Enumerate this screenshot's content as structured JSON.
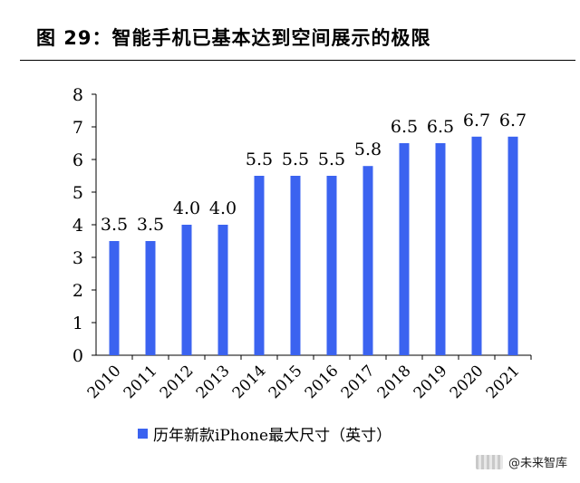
{
  "figure": {
    "title": "图 29：智能手机已基本达到空间展示的极限",
    "watermark": "@未来智库"
  },
  "chart_data": {
    "type": "bar",
    "categories": [
      "2010",
      "2011",
      "2012",
      "2013",
      "2014",
      "2015",
      "2016",
      "2017",
      "2018",
      "2019",
      "2020",
      "2021"
    ],
    "series": [
      {
        "name": "历年新款iPhone最大尺寸（英寸）",
        "values": [
          3.5,
          3.5,
          4.0,
          4.0,
          5.5,
          5.5,
          5.5,
          5.8,
          6.5,
          6.5,
          6.7,
          6.7
        ],
        "labels": [
          "3.5",
          "3.5",
          "4.0",
          "4.0",
          "5.5",
          "5.5",
          "5.5",
          "5.8",
          "6.5",
          "6.5",
          "6.7",
          "6.7"
        ]
      }
    ],
    "ylim": [
      0,
      8
    ],
    "yticks": [
      0,
      1,
      2,
      3,
      4,
      5,
      6,
      7,
      8
    ],
    "grid": false,
    "legend": "bottom",
    "colors": {
      "bar": "#3b63f0",
      "axis": "#000000"
    }
  }
}
